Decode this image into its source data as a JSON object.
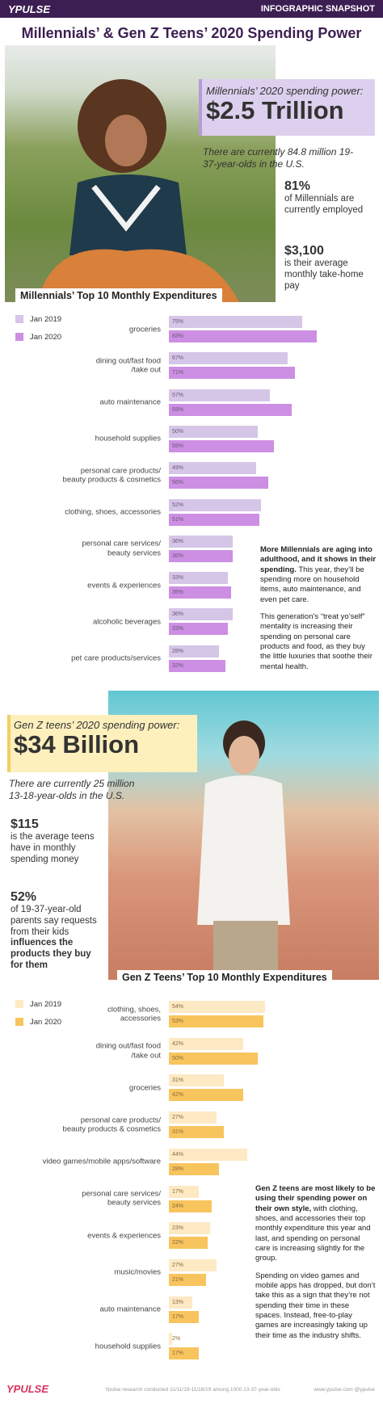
{
  "header": {
    "brand": "YPULSE",
    "tag": "INFOGRAPHIC SNAPSHOT",
    "title": "Millennials’ & Gen Z Teens’ 2020 Spending Power"
  },
  "millennials": {
    "power_label": "Millennials’ 2020 spending power:",
    "power_value": "$2.5 Trillion",
    "population": "There are currently 84.8 million 19-37-year-olds in the U.S.",
    "stats": [
      {
        "value": "81%",
        "text": [
          {
            "text": "of Millennials are currently employed"
          }
        ]
      },
      {
        "value": "$3,100",
        "text": [
          {
            "text": "is their average monthly take-home pay"
          }
        ]
      }
    ],
    "notes": [
      [
        {
          "text": "More Millennials are aging into adulthood, and it shows in their spending.",
          "bold": true
        },
        {
          "text": " This year, they’ll be spending more on household items, auto maintenance, and even pet care."
        }
      ],
      [
        {
          "text": "This generation’s “treat yo’self” mentality is increasing their spending on personal care products and food, as they buy the little luxuries that soothe their mental health."
        }
      ]
    ]
  },
  "genz": {
    "power_label": "Gen Z teens’ 2020 spending power:",
    "power_value": "$34 Billion",
    "population": "There are currently 25 million 13-18-year-olds in the U.S.",
    "stats": [
      {
        "value": "$115",
        "text": [
          {
            "text": "is the average teens have in monthly spending money"
          }
        ]
      },
      {
        "value": "52%",
        "text": [
          {
            "text": "of 19-37-year-old parents say requests from their kids "
          },
          {
            "text": "influences the products they buy for them",
            "bold": true
          }
        ]
      }
    ],
    "notes": [
      [
        {
          "text": "Gen Z teens are most likely to be using their spending power on their own style,",
          "bold": true
        },
        {
          "text": " with clothing, shoes, and accessories their top monthly expenditure this year and last, and spending on personal care is increasing slightly for the group."
        }
      ],
      [
        {
          "text": "Spending on video games and mobile apps has dropped, but don’t take this as a sign that they’re not spending their time in these spaces. Instead, free-to-play games are increasingly taking up their time as the industry shifts."
        }
      ]
    ]
  },
  "chart_data": [
    {
      "type": "bar",
      "title": "Millennials’ Top 10 Monthly Expenditures",
      "categories": [
        "groceries",
        "dining out/fast food\n/take out",
        "auto maintenance",
        "household supplies",
        "personal care products/\nbeauty products & cosmetics",
        "clothing, shoes, accessories",
        "personal care services/\nbeauty services",
        "events & experiences",
        "alcoholic beverages",
        "pet care products/services"
      ],
      "series": [
        {
          "name": "Jan 2019",
          "color": "#d5c6e8",
          "values": [
            75,
            67,
            57,
            50,
            49,
            52,
            36,
            33,
            36,
            28
          ],
          "value_labels": [
            "75%",
            "67%",
            "57%",
            "50%",
            "49%",
            "52%",
            "36%",
            "33%",
            "36%",
            "28%"
          ]
        },
        {
          "name": "Jan 2020",
          "color": "#cc8fe3",
          "values": [
            83,
            71,
            69,
            59,
            56,
            51,
            36,
            35,
            33,
            32
          ],
          "value_labels": [
            "83%",
            "71%",
            "69%",
            "59%",
            "56%",
            "51%",
            "36%",
            "35%",
            "33%",
            "32%"
          ]
        }
      ]
    },
    {
      "type": "bar",
      "title": "Gen Z Teens’ Top 10 Monthly Expenditures",
      "categories": [
        "clothing, shoes,\naccessories",
        "dining out/fast food\n/take out",
        "groceries",
        "personal care products/\nbeauty products & cosmetics",
        "video games/mobile apps/software",
        "personal care services/\nbeauty services",
        "events & experiences",
        "music/movies",
        "auto maintenance",
        "household supplies"
      ],
      "series": [
        {
          "name": "Jan 2019",
          "color": "#fde9c4",
          "values": [
            54,
            42,
            31,
            27,
            44,
            17,
            23,
            27,
            13,
            2
          ],
          "value_labels": [
            "54%",
            "42%",
            "31%",
            "27%",
            "44%",
            "17%",
            "23%",
            "27%",
            "13%",
            "2%"
          ]
        },
        {
          "name": "Jan 2020",
          "color": "#f8c45e",
          "values": [
            53,
            50,
            42,
            31,
            28,
            24,
            22,
            21,
            17,
            17
          ],
          "value_labels": [
            "53%",
            "50%",
            "42%",
            "31%",
            "28%",
            "24%",
            "22%",
            "21%",
            "17%",
            "17%"
          ]
        }
      ]
    }
  ],
  "footer": {
    "brand": "YPULSE",
    "source": "Ypulse research conducted 11/11/19-11/18/19 among 1000 13-37-year-olds",
    "site": "www.ypulse.com @ypulse"
  }
}
